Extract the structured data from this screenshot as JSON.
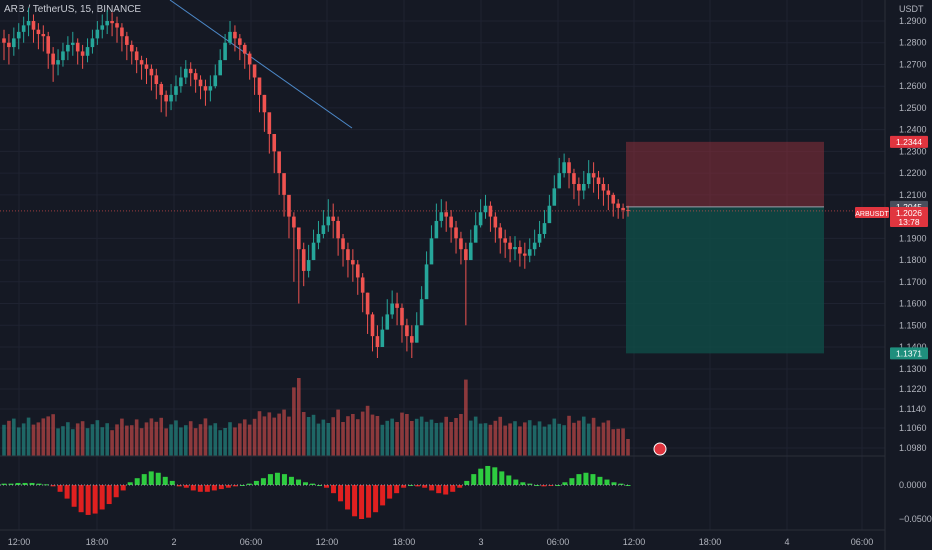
{
  "header": {
    "symbol_title": "ARB / TetherUS, 15, BINANCE"
  },
  "colors": {
    "bg": "#151924",
    "up": "#26a69a",
    "down": "#ef5350",
    "grid": "#1f2331",
    "text": "#b2b5be",
    "trend": "#4c88c8",
    "stop": "#8a2f3a",
    "target": "#0f4c47",
    "osc_up": "#2ecc40",
    "osc_down": "#e02020"
  },
  "chart_data": {
    "type": "candlestick",
    "symbol": "ARB / TetherUS",
    "interval": "15",
    "exchange": "BINANCE",
    "currency_label": "USDT",
    "price_ticks": [
      "1.2900",
      "1.2800",
      "1.2700",
      "1.2600",
      "1.2500",
      "1.2400",
      "1.2300",
      "1.2200",
      "1.2100",
      "1.1900",
      "1.1800",
      "1.1700",
      "1.1600",
      "1.1500",
      "1.1400",
      "1.1300",
      "1.1220",
      "1.1140",
      "1.1060",
      "1.0980"
    ],
    "osc_ticks": [
      "0.0000",
      "−0.0500"
    ],
    "time_ticks": [
      "12:00",
      "18:00",
      "2",
      "06:00",
      "12:00",
      "18:00",
      "3",
      "06:00",
      "12:00",
      "18:00",
      "4",
      "06:00"
    ],
    "price_tags": {
      "stop": {
        "value": 1.2344,
        "label": "1.2344"
      },
      "entry": {
        "value": 1.2045,
        "label": "1.2045"
      },
      "last": {
        "symbol": "ARBUSDT",
        "value": 1.2026,
        "label": "1.2026",
        "countdown": "13:78"
      },
      "target": {
        "value": 1.1371,
        "label": "1.1371"
      }
    },
    "candles_close": [
      1.28,
      1.278,
      1.282,
      1.285,
      1.288,
      1.29,
      1.286,
      1.284,
      1.283,
      1.275,
      1.27,
      1.272,
      1.276,
      1.279,
      1.28,
      1.276,
      1.274,
      1.278,
      1.282,
      1.286,
      1.288,
      1.29,
      1.289,
      1.287,
      1.283,
      1.279,
      1.276,
      1.272,
      1.27,
      1.268,
      1.265,
      1.261,
      1.256,
      1.253,
      1.256,
      1.26,
      1.264,
      1.268,
      1.266,
      1.263,
      1.26,
      1.258,
      1.26,
      1.265,
      1.272,
      1.28,
      1.285,
      1.282,
      1.279,
      1.275,
      1.27,
      1.264,
      1.256,
      1.248,
      1.238,
      1.23,
      1.22,
      1.21,
      1.2,
      1.195,
      1.185,
      1.175,
      1.18,
      1.188,
      1.192,
      1.196,
      1.2,
      1.198,
      1.19,
      1.185,
      1.18,
      1.178,
      1.172,
      1.165,
      1.155,
      1.145,
      1.14,
      1.148,
      1.155,
      1.16,
      1.158,
      1.15,
      1.145,
      1.142,
      1.15,
      1.162,
      1.178,
      1.19,
      1.198,
      1.202,
      1.2,
      1.195,
      1.19,
      1.185,
      1.18,
      1.188,
      1.196,
      1.202,
      1.205,
      1.2,
      1.195,
      1.19,
      1.188,
      1.185,
      1.186,
      1.183,
      1.182,
      1.185,
      1.188,
      1.192,
      1.197,
      1.205,
      1.213,
      1.22,
      1.225,
      1.22,
      1.215,
      1.212,
      1.215,
      1.22,
      1.218,
      1.215,
      1.212,
      1.21,
      1.206,
      1.204,
      1.203,
      1.2026
    ],
    "candles_high": [
      1.286,
      1.284,
      1.287,
      1.289,
      1.292,
      1.296,
      1.293,
      1.289,
      1.288,
      1.285,
      1.278,
      1.277,
      1.28,
      1.283,
      1.285,
      1.282,
      1.279,
      1.282,
      1.286,
      1.29,
      1.293,
      1.295,
      1.294,
      1.292,
      1.289,
      1.285,
      1.281,
      1.278,
      1.274,
      1.273,
      1.27,
      1.268,
      1.262,
      1.258,
      1.261,
      1.265,
      1.269,
      1.272,
      1.271,
      1.268,
      1.265,
      1.263,
      1.265,
      1.27,
      1.277,
      1.284,
      1.29,
      1.288,
      1.284,
      1.28,
      1.276,
      1.27,
      1.264,
      1.256,
      1.246,
      1.238,
      1.228,
      1.218,
      1.208,
      1.202,
      1.195,
      1.188,
      1.187,
      1.194,
      1.198,
      1.203,
      1.208,
      1.206,
      1.2,
      1.192,
      1.188,
      1.185,
      1.18,
      1.174,
      1.165,
      1.156,
      1.15,
      1.154,
      1.162,
      1.166,
      1.165,
      1.16,
      1.153,
      1.15,
      1.156,
      1.168,
      1.184,
      1.196,
      1.206,
      1.208,
      1.207,
      1.203,
      1.198,
      1.193,
      1.188,
      1.194,
      1.202,
      1.208,
      1.21,
      1.207,
      1.202,
      1.197,
      1.194,
      1.191,
      1.191,
      1.189,
      1.188,
      1.19,
      1.194,
      1.198,
      1.203,
      1.21,
      1.219,
      1.227,
      1.229,
      1.227,
      1.222,
      1.218,
      1.221,
      1.226,
      1.225,
      1.221,
      1.218,
      1.215,
      1.211,
      1.208,
      1.206,
      1.205
    ],
    "candles_low": [
      1.272,
      1.27,
      1.274,
      1.277,
      1.28,
      1.283,
      1.28,
      1.277,
      1.276,
      1.268,
      1.262,
      1.265,
      1.269,
      1.272,
      1.274,
      1.27,
      1.268,
      1.271,
      1.275,
      1.279,
      1.282,
      1.284,
      1.283,
      1.28,
      1.276,
      1.272,
      1.27,
      1.266,
      1.263,
      1.261,
      1.258,
      1.254,
      1.248,
      1.246,
      1.249,
      1.253,
      1.257,
      1.261,
      1.26,
      1.257,
      1.254,
      1.251,
      1.253,
      1.259,
      1.266,
      1.274,
      1.279,
      1.276,
      1.272,
      1.268,
      1.263,
      1.256,
      1.248,
      1.239,
      1.229,
      1.22,
      1.21,
      1.2,
      1.19,
      1.17,
      1.16,
      1.168,
      1.172,
      1.18,
      1.185,
      1.19,
      1.193,
      1.19,
      1.182,
      1.177,
      1.172,
      1.17,
      1.164,
      1.156,
      1.146,
      1.138,
      1.135,
      1.14,
      1.148,
      1.153,
      1.15,
      1.142,
      1.138,
      1.135,
      1.142,
      1.155,
      1.17,
      1.183,
      1.191,
      1.195,
      1.193,
      1.188,
      1.183,
      1.178,
      1.15,
      1.181,
      1.189,
      1.195,
      1.199,
      1.193,
      1.188,
      1.183,
      1.181,
      1.179,
      1.18,
      1.177,
      1.176,
      1.179,
      1.182,
      1.186,
      1.19,
      1.198,
      1.206,
      1.213,
      1.218,
      1.213,
      1.208,
      1.205,
      1.208,
      1.213,
      1.211,
      1.208,
      1.205,
      1.203,
      1.2,
      1.199,
      1.199,
      1.2
    ],
    "volume_ticks_note": "",
    "oscillator_values": [
      0.002,
      0.002,
      0.003,
      0.003,
      0.003,
      0.002,
      0.001,
      -0.002,
      -0.01,
      -0.02,
      -0.032,
      -0.04,
      -0.044,
      -0.042,
      -0.036,
      -0.028,
      -0.018,
      -0.008,
      0.004,
      0.01,
      0.016,
      0.02,
      0.018,
      0.012,
      0.006,
      -0.002,
      -0.004,
      -0.008,
      -0.01,
      -0.01,
      -0.008,
      -0.006,
      -0.004,
      -0.002,
      0.0,
      0.002,
      0.006,
      0.01,
      0.016,
      0.018,
      0.016,
      0.012,
      0.008,
      0.004,
      0.002,
      0.0,
      -0.004,
      -0.012,
      -0.024,
      -0.036,
      -0.046,
      -0.05,
      -0.048,
      -0.04,
      -0.03,
      -0.02,
      -0.012,
      -0.004,
      0.0,
      -0.002,
      -0.004,
      -0.008,
      -0.012,
      -0.014,
      -0.01,
      -0.004,
      0.006,
      0.016,
      0.024,
      0.028,
      0.026,
      0.02,
      0.014,
      0.008,
      0.004,
      0.002,
      0.0,
      -0.002,
      -0.001,
      0.0,
      0.004,
      0.01,
      0.016,
      0.018,
      0.016,
      0.012,
      0.008,
      0.004,
      0.002,
      0.0
    ]
  },
  "legend_badge": {
    "icon": "alert-icon"
  }
}
